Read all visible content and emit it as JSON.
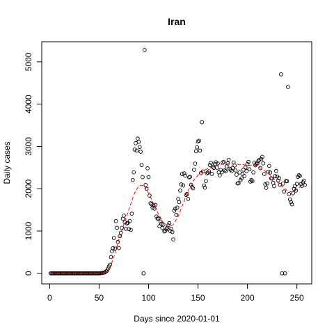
{
  "chart_data": {
    "type": "scatter",
    "title": "Iran",
    "xlabel": "Days since 2020-01-01",
    "ylabel": "Daily cases",
    "xlim": [
      -8,
      265
    ],
    "ylim": [
      -250,
      5475
    ],
    "xticks": [
      0,
      50,
      100,
      150,
      200,
      250
    ],
    "yticks": [
      0,
      1000,
      2000,
      3000,
      4000,
      5000
    ],
    "series": [
      {
        "color": "#000000",
        "x": [
          1,
          2,
          3,
          4,
          5,
          6,
          7,
          8,
          9,
          10,
          11,
          12,
          13,
          14,
          15,
          16,
          17,
          18,
          19,
          20,
          21,
          22,
          23,
          24,
          25,
          26,
          27,
          28,
          29,
          30,
          31,
          32,
          33,
          34,
          35,
          36,
          37,
          38,
          39,
          40,
          41,
          42,
          43,
          44,
          45,
          46,
          47,
          48,
          49,
          50,
          51,
          52,
          53,
          54,
          55,
          56,
          57,
          58,
          59,
          60,
          61,
          62,
          63,
          64,
          65,
          66,
          67,
          68,
          69,
          70,
          71,
          72,
          73,
          74,
          75,
          76,
          77,
          78,
          79,
          80,
          81,
          82,
          83,
          84,
          85,
          86,
          87,
          88,
          89,
          90,
          91,
          92,
          93,
          94,
          95,
          96,
          97,
          98,
          99,
          100,
          101,
          102,
          103,
          104,
          105,
          106,
          107,
          108,
          109,
          110,
          111,
          112,
          113,
          114,
          115,
          116,
          117,
          118,
          119,
          120,
          121,
          122,
          123,
          124,
          125,
          126,
          127,
          128,
          129,
          130,
          131,
          132,
          133,
          134,
          135,
          136,
          137,
          138,
          139,
          140,
          141,
          142,
          143,
          144,
          145,
          146,
          147,
          148,
          149,
          150,
          151,
          152,
          153,
          154,
          155,
          156,
          157,
          158,
          159,
          160,
          161,
          162,
          163,
          164,
          165,
          166,
          167,
          168,
          169,
          170,
          171,
          172,
          173,
          174,
          175,
          176,
          177,
          178,
          179,
          180,
          181,
          182,
          183,
          184,
          185,
          186,
          187,
          188,
          189,
          190,
          191,
          192,
          193,
          194,
          195,
          196,
          197,
          198,
          199,
          200,
          201,
          202,
          203,
          204,
          205,
          206,
          207,
          208,
          209,
          210,
          211,
          212,
          213,
          214,
          215,
          216,
          217,
          218,
          219,
          220,
          221,
          222,
          223,
          224,
          225,
          226,
          227,
          228,
          229,
          230,
          231,
          232,
          233,
          234,
          235,
          236,
          237,
          238,
          239,
          240,
          241,
          242,
          243,
          244,
          245,
          246,
          247,
          248,
          249,
          250,
          251,
          252,
          253,
          254,
          255,
          256,
          257,
          258
        ],
        "values": [
          0,
          0,
          0,
          0,
          0,
          0,
          0,
          0,
          0,
          0,
          0,
          0,
          0,
          0,
          0,
          0,
          0,
          0,
          0,
          0,
          0,
          0,
          0,
          0,
          0,
          0,
          0,
          0,
          0,
          0,
          0,
          0,
          0,
          0,
          0,
          0,
          0,
          0,
          0,
          0,
          0,
          0,
          0,
          0,
          0,
          0,
          0,
          0,
          0,
          0,
          2,
          5,
          10,
          15,
          18,
          25,
          45,
          60,
          110,
          160,
          205,
          385,
          523,
          591,
          835,
          586,
          1234,
          1076,
          743,
          595,
          881,
          958,
          1075,
          1289,
          1365,
          1209,
          1053,
          1178,
          1192,
          1046,
          1237,
          1028,
          1411,
          2206,
          2389,
          2926,
          3076,
          2901,
          3186,
          3111,
          2987,
          2875,
          2560,
          2274,
          0,
          5280,
          2089,
          1997,
          2483,
          2274,
          1837,
          1657,
          1634,
          1553,
          1606,
          1529,
          1617,
          1343,
          1294,
          1297,
          1112,
          1223,
          1168,
          1073,
          1153,
          991,
          1006,
          1039,
          1080,
          1134,
          1185,
          998,
          1051,
          976,
          802,
          1481,
          1529,
          1383,
          1556,
          1757,
          1683,
          1958,
          2102,
          2346,
          2080,
          2364,
          2311,
          1852,
          1876,
          1757,
          2269,
          2282,
          2095,
          2043,
          2011,
          2449,
          2595,
          2886,
          2979,
          3117,
          3134,
          2900,
          2369,
          3574,
          2410,
          2077,
          2025,
          2180,
          2364,
          2379,
          2411,
          2560,
          2613,
          2349,
          2521,
          2494,
          2586,
          2625,
          2500,
          2596,
          2388,
          2316,
          2444,
          2389,
          2621,
          2636,
          2434,
          2416,
          2530,
          2598,
          2685,
          2474,
          2450,
          2416,
          2489,
          2621,
          2549,
          2432,
          2333,
          2125,
          2132,
          2385,
          2205,
          2245,
          2349,
          2450,
          2300,
          2502,
          2417,
          2585,
          2635,
          2460,
          2169,
          2206,
          2180,
          2385,
          2615,
          2553,
          2590,
          2598,
          2655,
          2685,
          2489,
          2700,
          2755,
          2600,
          2350,
          2104,
          2021,
          2125,
          2402,
          2541,
          2385,
          2245,
          2240,
          2139,
          2063,
          2300,
          2421,
          2289,
          2190,
          2250,
          2089,
          4705,
          0,
          2122,
          1935,
          0,
          2183,
          2176,
          4405,
          1873,
          1748,
          1682,
          1632,
          1893,
          1997,
          2064,
          1956,
          2115,
          2282,
          2321,
          2302,
          2112,
          2070,
          2150,
          2190,
          2090
        ]
      },
      {
        "type": "line",
        "color": "#ff0000",
        "x": [
          1,
          50,
          55,
          60,
          65,
          70,
          75,
          80,
          85,
          90,
          95,
          100,
          105,
          110,
          115,
          120,
          125,
          130,
          135,
          140,
          145,
          150,
          155,
          160,
          165,
          170,
          175,
          180,
          185,
          190,
          195,
          200,
          205,
          210,
          215,
          220,
          225,
          230,
          235,
          240,
          245,
          250,
          255,
          258
        ],
        "values": [
          0,
          0,
          0,
          50,
          400,
          800,
          1150,
          1500,
          1850,
          2070,
          2080,
          1900,
          1650,
          1400,
          1200,
          1100,
          1150,
          1350,
          1650,
          1950,
          2180,
          2320,
          2420,
          2480,
          2530,
          2570,
          2580,
          2590,
          2590,
          2580,
          2570,
          2560,
          2550,
          2530,
          2470,
          2380,
          2280,
          2170,
          2060,
          1960,
          1920,
          1980,
          2080,
          2120
        ]
      }
    ]
  }
}
